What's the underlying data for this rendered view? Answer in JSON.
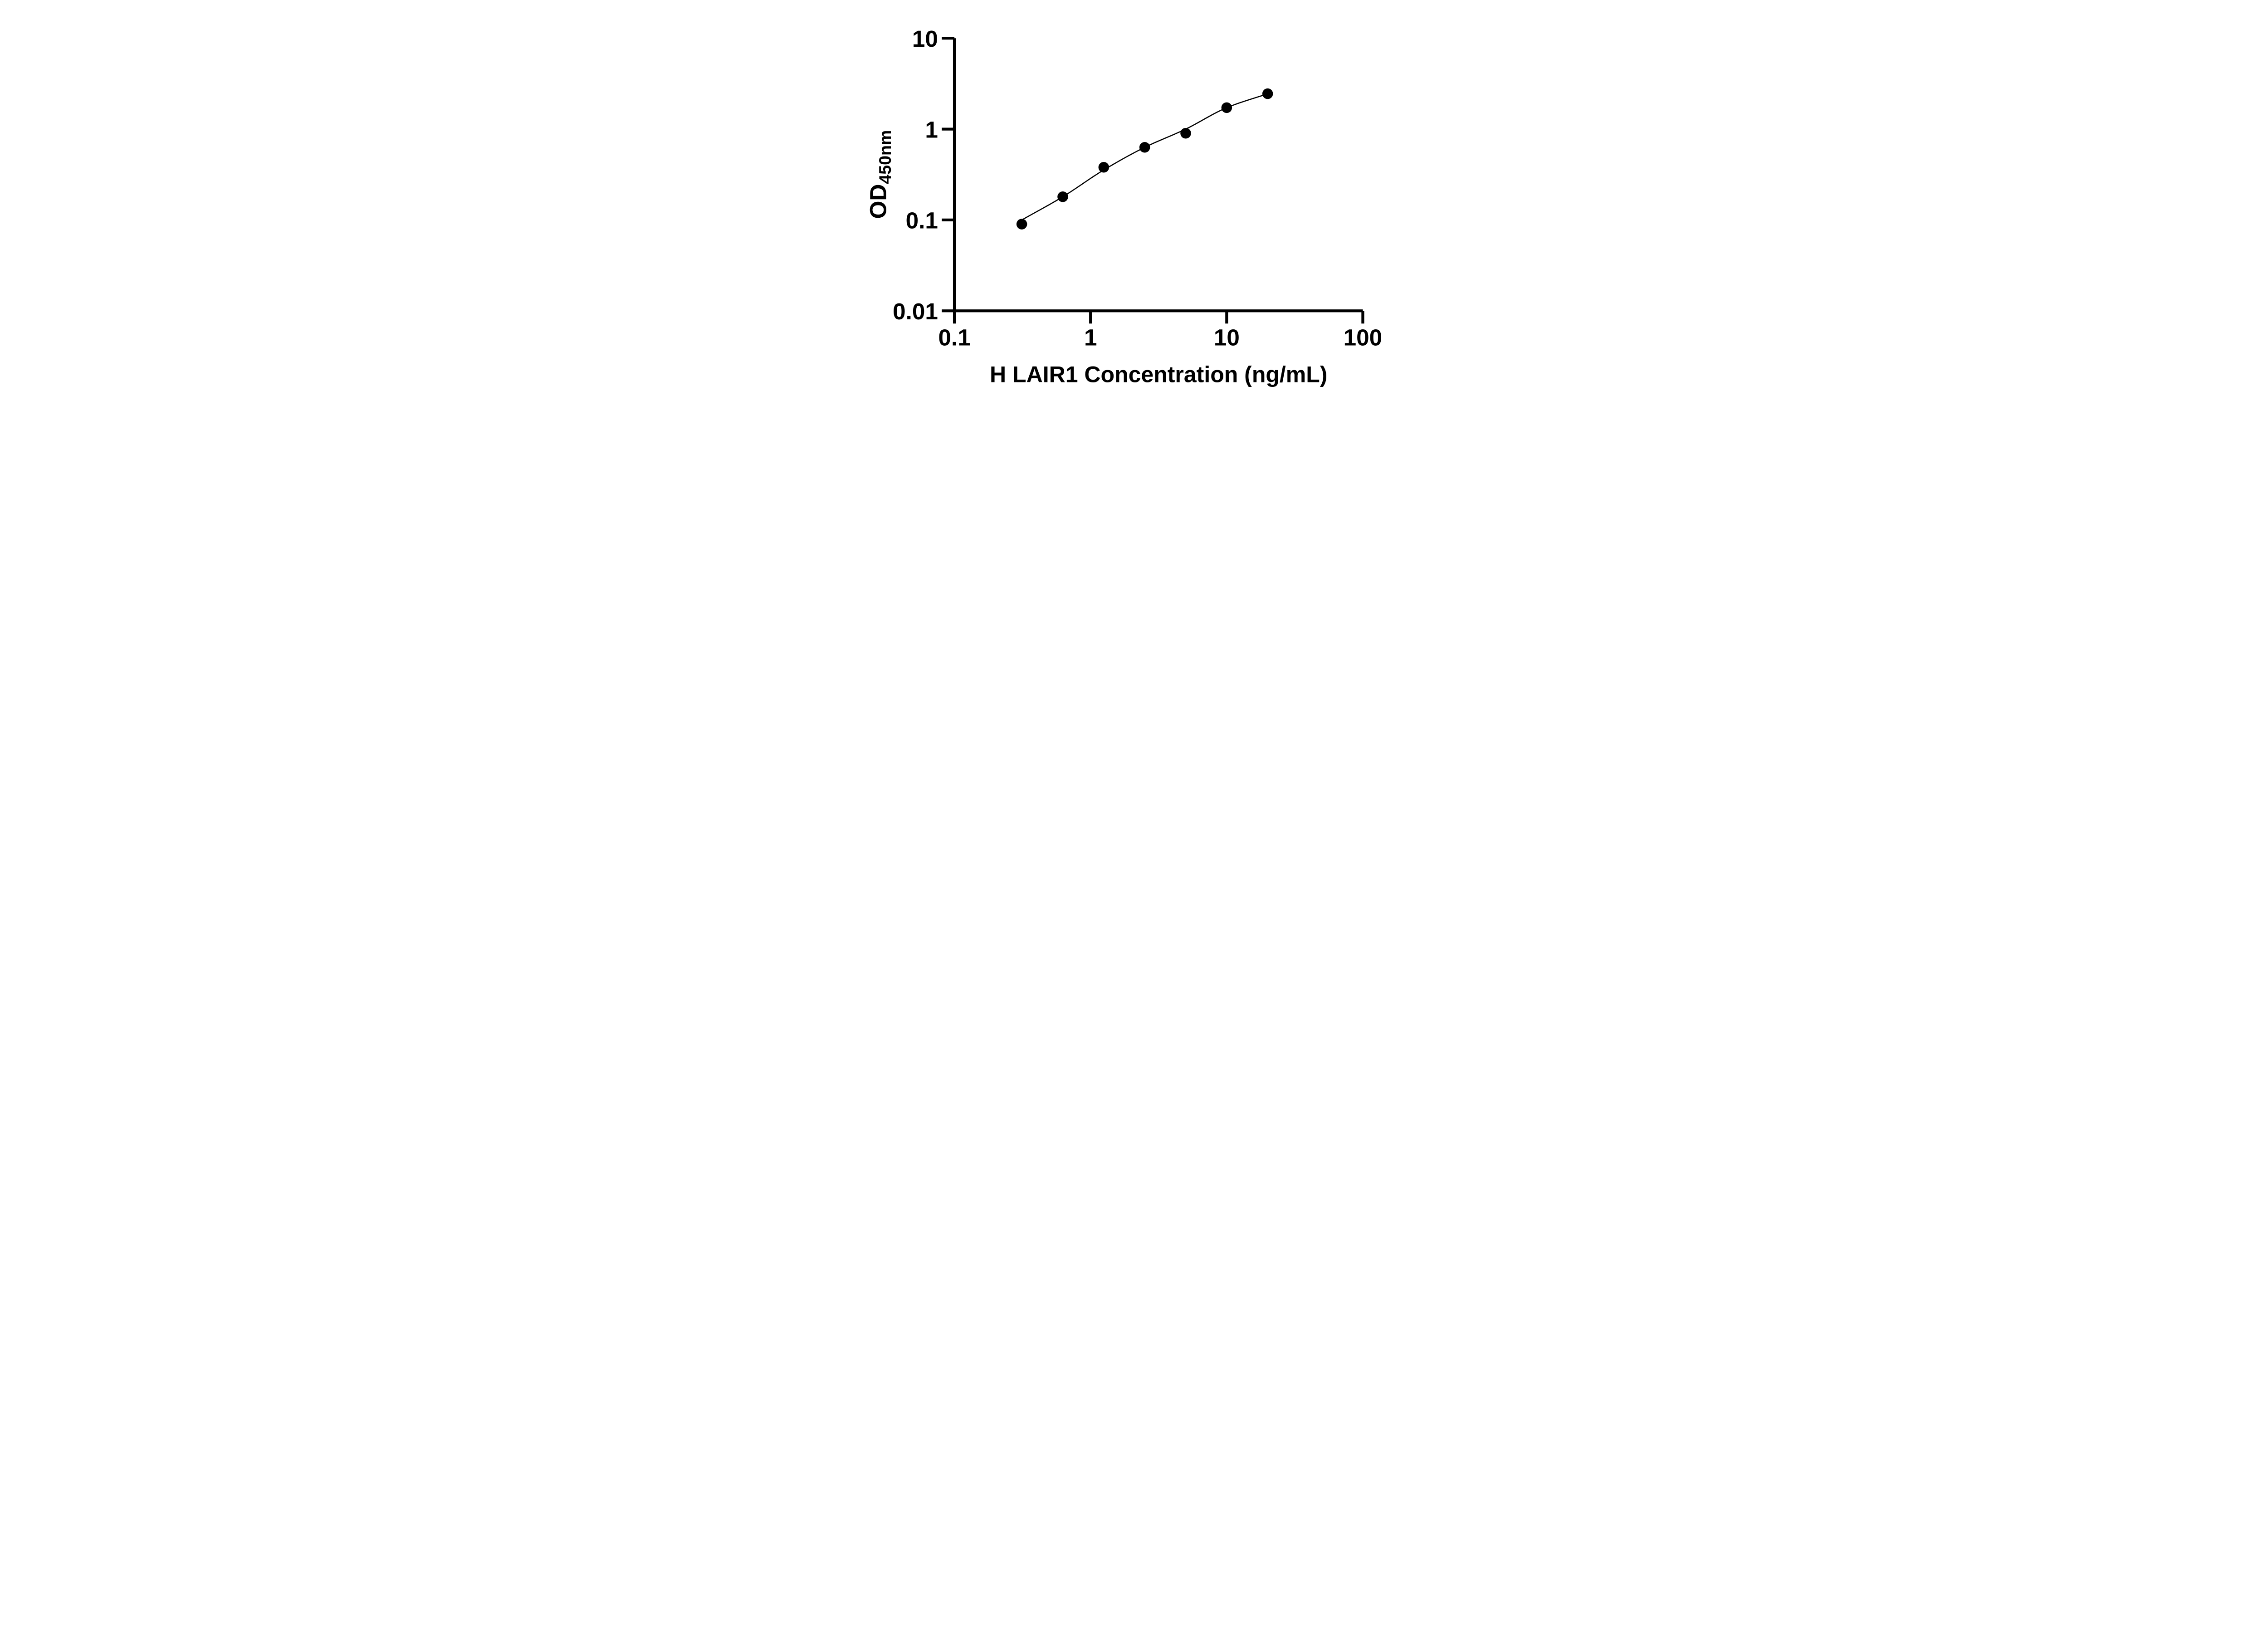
{
  "figure": {
    "background_color": "#ffffff",
    "ink_color": "#000000"
  },
  "chart_data": {
    "type": "scatter",
    "title": "",
    "xlabel": "H LAIR1 Concentration (ng/mL)",
    "ylabel": "OD450nm",
    "ylabel_main": "OD",
    "ylabel_sub": "450nm",
    "x_scale": "log10",
    "y_scale": "log10",
    "xlim": [
      0.1,
      100
    ],
    "ylim": [
      0.01,
      10
    ],
    "x_ticks": [
      0.1,
      1,
      10,
      100
    ],
    "x_tick_labels": [
      "0.1",
      "1",
      "10",
      "100"
    ],
    "y_ticks": [
      0.01,
      0.1,
      1,
      10
    ],
    "y_tick_labels": [
      "0.01",
      "0.1",
      "1",
      "10"
    ],
    "grid": false,
    "legend_position": "none",
    "marker": "filled-circle",
    "marker_color": "#000000",
    "line_color": "#000000",
    "series": [
      {
        "name": "standard-curve-points",
        "x": [
          0.3125,
          0.625,
          1.25,
          2.5,
          5,
          10,
          20
        ],
        "y": [
          0.09,
          0.18,
          0.38,
          0.63,
          0.9,
          1.72,
          2.45
        ]
      }
    ],
    "fit_curve": {
      "name": "fitted-standard-curve",
      "x": [
        0.3125,
        0.625,
        1.25,
        2.5,
        5,
        10,
        20
      ],
      "y": [
        0.1,
        0.18,
        0.355,
        0.63,
        1.0,
        1.72,
        2.45
      ]
    }
  }
}
